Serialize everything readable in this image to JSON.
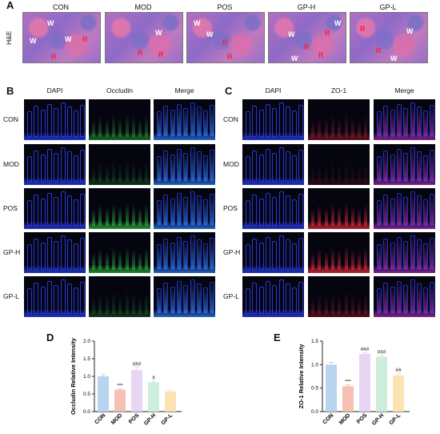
{
  "panel_a": {
    "letter": "A",
    "row_label": "H&E",
    "groups": [
      "CON",
      "MOD",
      "POS",
      "GP-H",
      "GP-L"
    ],
    "marker_w": "W",
    "marker_r": "R"
  },
  "panel_b": {
    "letter": "B",
    "columns": [
      "DAPI",
      "Occludin",
      "Merge"
    ],
    "rows": [
      "CON",
      "MOD",
      "POS",
      "GP-H",
      "GP-L"
    ]
  },
  "panel_c": {
    "letter": "C",
    "columns": [
      "DAPI",
      "ZO-1",
      "Merge"
    ],
    "rows": [
      "CON",
      "MOD",
      "POS",
      "GP-H",
      "GP-L"
    ]
  },
  "panel_d": {
    "letter": "D"
  },
  "panel_e": {
    "letter": "E"
  },
  "colors": {
    "dapi": "#2a3df0",
    "occludin": "#2fbf3f",
    "zo1": "#e02a3a",
    "bar_con": "#b9d4ef",
    "bar_mod": "#f6bfb4",
    "bar_pos": "#e6d5f3",
    "bar_gph": "#cdeedb",
    "bar_gpl": "#fbe3b3"
  },
  "chart_data": [
    {
      "type": "bar",
      "categories": [
        "CON",
        "MOD",
        "POS",
        "GP-H",
        "GP-L"
      ],
      "values": [
        1.0,
        0.62,
        1.18,
        0.83,
        0.57
      ],
      "errors": [
        0.05,
        0.03,
        0.08,
        0.04,
        0.04
      ],
      "annotations": [
        "",
        "***",
        "###",
        "#",
        ""
      ],
      "ylabel": "Occludin Relative Intensity",
      "ylim": [
        0.0,
        2.0
      ],
      "yticks": [
        "0.0",
        "0.5",
        "1.0",
        "1.5",
        "2.0"
      ]
    },
    {
      "type": "bar",
      "categories": [
        "CON",
        "MOD",
        "POS",
        "GP-H",
        "GP-L"
      ],
      "values": [
        1.0,
        0.54,
        1.23,
        1.17,
        0.77
      ],
      "errors": [
        0.05,
        0.03,
        0.03,
        0.03,
        0.05
      ],
      "annotations": [
        "",
        "***",
        "###",
        "###",
        "##"
      ],
      "ylabel": "ZO-1 Relative Intensity",
      "ylim": [
        0.0,
        1.5
      ],
      "yticks": [
        "0.0",
        "0.5",
        "1.0",
        "1.5"
      ]
    }
  ]
}
